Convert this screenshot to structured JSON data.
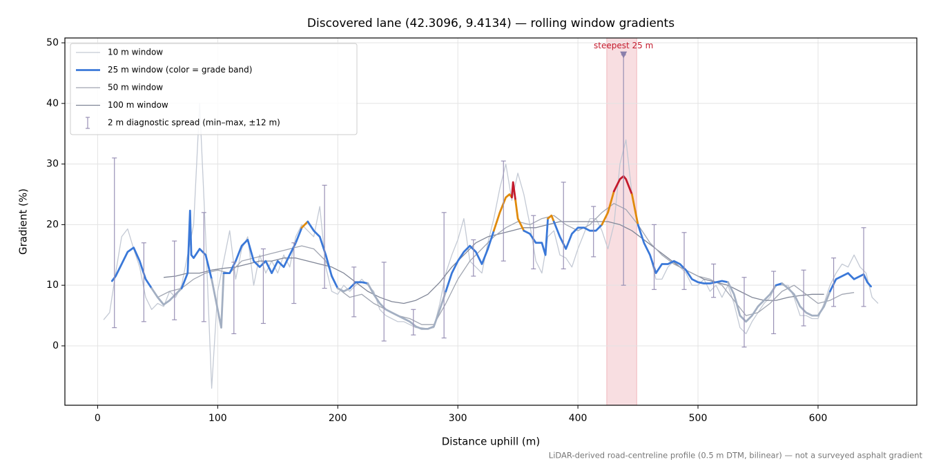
{
  "chart_data": {
    "type": "line",
    "title": "Discovered lane (42.3096, 9.4134) — rolling window gradients",
    "xlabel": "Distance uphill (m)",
    "ylabel": "Gradient (%)",
    "note": "LiDAR-derived road-centreline profile (0.5 m DTM, bilinear) — not a surveyed asphalt gradient",
    "xlim": [
      -27.25,
      682.25
    ],
    "ylim": [
      -9.8,
      50.8
    ],
    "xticks": [
      0,
      100,
      200,
      300,
      400,
      500,
      600
    ],
    "yticks": [
      0,
      10,
      20,
      30,
      40,
      50
    ],
    "grid": true,
    "legend": "upper left",
    "series": [
      {
        "name": "10 m window",
        "color": "#c3c9d4",
        "x": [
          5,
          10,
          15,
          20,
          25,
          30,
          35,
          40,
          45,
          50,
          55,
          60,
          65,
          70,
          75,
          80,
          85,
          90,
          95,
          100,
          105,
          110,
          115,
          120,
          125,
          130,
          135,
          140,
          145,
          150,
          155,
          160,
          165,
          170,
          175,
          180,
          185,
          190,
          195,
          200,
          205,
          210,
          215,
          220,
          225,
          230,
          235,
          240,
          245,
          250,
          255,
          260,
          265,
          270,
          275,
          280,
          285,
          290,
          295,
          300,
          305,
          310,
          315,
          320,
          325,
          330,
          335,
          340,
          345,
          350,
          355,
          360,
          365,
          370,
          375,
          380,
          385,
          390,
          395,
          400,
          405,
          410,
          415,
          420,
          425,
          430,
          435,
          440,
          445,
          450,
          455,
          460,
          465,
          470,
          475,
          480,
          485,
          490,
          495,
          500,
          505,
          510,
          515,
          520,
          525,
          530,
          535,
          540,
          545,
          550,
          555,
          560,
          565,
          570,
          575,
          580,
          585,
          590,
          595,
          600,
          605,
          610,
          615,
          620,
          625,
          630,
          635,
          640,
          645,
          650
        ],
        "values": [
          4.3,
          5.5,
          12,
          18,
          19.3,
          16,
          13,
          8,
          6,
          7,
          6.5,
          9,
          8,
          10,
          15,
          20,
          40,
          18,
          -7,
          9,
          14,
          19,
          11,
          16,
          18,
          10,
          15,
          12,
          14,
          12,
          15,
          13,
          18,
          20,
          19,
          18,
          23,
          13,
          9,
          8.5,
          10,
          9,
          10,
          11,
          10,
          9,
          6,
          5,
          4.5,
          4,
          4,
          3.5,
          3,
          3,
          2.8,
          3,
          7,
          12,
          15,
          17.5,
          21,
          14,
          13,
          12,
          17,
          21,
          26,
          30,
          24,
          28.5,
          25,
          20,
          14,
          12,
          18,
          19,
          15,
          14.5,
          13,
          16,
          18.5,
          21,
          21,
          19,
          16,
          20,
          30,
          34,
          25,
          20,
          17,
          15,
          11,
          11,
          13,
          14,
          13,
          12,
          10,
          10,
          11,
          9,
          10,
          8,
          10,
          7,
          3,
          2,
          4,
          5.5,
          7,
          8,
          10,
          10,
          10,
          8,
          5,
          5,
          4.5,
          4.5,
          7,
          10,
          12,
          13.5,
          13,
          15,
          13,
          12,
          8,
          7
        ]
      },
      {
        "name": "25 m window (color = grade band)",
        "color": "#3a78d8",
        "band_thresholds": [
          10,
          20,
          25
        ],
        "band_colors": [
          "#a3afc2",
          "#3a78d8",
          "#e08a0b",
          "#c41a2c"
        ],
        "x": [
          12,
          15,
          20,
          25,
          30,
          35,
          40,
          45,
          50,
          55,
          60,
          65,
          70,
          75,
          77,
          78,
          80,
          85,
          90,
          95,
          100,
          103,
          105,
          110,
          115,
          120,
          125,
          130,
          135,
          140,
          145,
          150,
          155,
          160,
          165,
          170,
          175,
          180,
          185,
          190,
          195,
          200,
          205,
          210,
          215,
          220,
          225,
          230,
          235,
          240,
          245,
          250,
          255,
          260,
          265,
          270,
          275,
          280,
          285,
          290,
          295,
          300,
          305,
          310,
          315,
          320,
          325,
          330,
          335,
          340,
          343,
          345,
          346,
          348,
          350,
          355,
          360,
          365,
          370,
          373,
          375,
          378,
          380,
          385,
          390,
          395,
          400,
          405,
          410,
          415,
          420,
          425,
          430,
          435,
          438,
          440,
          445,
          448,
          450,
          455,
          460,
          465,
          470,
          475,
          480,
          485,
          490,
          495,
          500,
          505,
          510,
          515,
          520,
          525,
          530,
          535,
          540,
          545,
          550,
          555,
          560,
          565,
          570,
          575,
          580,
          585,
          590,
          595,
          600,
          605,
          610,
          615,
          620,
          625,
          630,
          635,
          638,
          641,
          644
        ],
        "values": [
          10.7,
          11.5,
          13.5,
          15.5,
          16.2,
          14,
          11,
          9.5,
          8,
          6.8,
          7.5,
          8.5,
          9.5,
          12,
          22.3,
          15,
          14.5,
          16,
          15,
          11,
          6,
          3,
          12,
          12,
          14,
          16.5,
          17.5,
          14,
          13,
          14,
          12,
          14,
          13,
          15,
          17,
          19.5,
          20.5,
          19,
          18,
          15,
          11.5,
          9.5,
          9,
          9.5,
          10.5,
          10.5,
          10.3,
          8.5,
          7,
          6,
          5.5,
          5,
          4.5,
          4,
          3.2,
          2.8,
          2.8,
          3.2,
          6,
          9,
          12,
          14,
          15.5,
          16.5,
          15.5,
          13.5,
          16,
          19,
          22,
          24.5,
          25,
          24.5,
          27,
          24,
          21,
          19,
          18.5,
          17,
          17,
          15,
          21,
          21.5,
          20.5,
          18,
          16,
          18.5,
          19.5,
          19.5,
          19,
          19,
          20,
          22,
          25.5,
          27.5,
          28,
          27.5,
          25,
          22,
          20,
          17,
          15,
          12,
          13.5,
          13.5,
          14,
          13.5,
          12.5,
          11,
          10.5,
          10.3,
          10.3,
          10.5,
          10.7,
          10.5,
          8.5,
          5,
          4,
          5,
          6.5,
          7.5,
          8.5,
          10,
          10.3,
          9.5,
          8.5,
          6.5,
          5.5,
          5,
          5,
          6.5,
          9,
          11,
          11.5,
          12,
          11,
          11.5,
          11.8,
          10.5,
          9.8
        ]
      },
      {
        "name": "50 m window",
        "color": "#a0a5b1",
        "x": [
          40,
          50,
          60,
          70,
          80,
          90,
          100,
          110,
          120,
          130,
          140,
          150,
          160,
          170,
          180,
          190,
          200,
          210,
          220,
          230,
          240,
          250,
          260,
          270,
          280,
          290,
          300,
          310,
          320,
          330,
          340,
          350,
          360,
          370,
          380,
          390,
          400,
          410,
          420,
          430,
          440,
          450,
          460,
          470,
          480,
          490,
          500,
          510,
          520,
          530,
          540,
          550,
          560,
          570,
          580,
          590,
          600,
          610,
          620,
          630
        ],
        "values": [
          11,
          8,
          9,
          9.5,
          11,
          12,
          12.5,
          12,
          14,
          14.5,
          15,
          15.5,
          16,
          16.5,
          16,
          14,
          9.5,
          8,
          8.5,
          7,
          6,
          5,
          4.5,
          3.5,
          3.5,
          7,
          11,
          14,
          16,
          18,
          19.5,
          20.5,
          20,
          21,
          21.5,
          20,
          19,
          20,
          22,
          23.5,
          22.5,
          20,
          17,
          15,
          13.5,
          12.5,
          11.5,
          11,
          10,
          7.5,
          5,
          5.5,
          7,
          9,
          10,
          8.5,
          7,
          7.5,
          8.5,
          8.8
        ]
      },
      {
        "name": "100 m window",
        "color": "#7f8596",
        "x": [
          55,
          65,
          75,
          85,
          95,
          105,
          115,
          125,
          135,
          145,
          155,
          165,
          175,
          185,
          195,
          205,
          215,
          225,
          235,
          245,
          255,
          265,
          275,
          285,
          295,
          305,
          315,
          325,
          335,
          345,
          355,
          365,
          375,
          385,
          395,
          405,
          415,
          425,
          435,
          445,
          455,
          465,
          475,
          485,
          495,
          505,
          515,
          525,
          535,
          545,
          555,
          565,
          575,
          585,
          595,
          605
        ],
        "values": [
          11.3,
          11.5,
          12,
          12,
          12.5,
          12.8,
          13,
          13.5,
          14,
          14,
          14.5,
          14.5,
          14,
          13.5,
          13,
          12,
          10.5,
          9,
          8,
          7.3,
          7,
          7.5,
          8.5,
          10.5,
          13,
          15,
          17,
          18,
          18.5,
          19,
          19.5,
          19.5,
          20,
          20.5,
          20.5,
          20.5,
          20.5,
          20.5,
          20,
          19,
          17.5,
          16,
          14.5,
          13,
          12,
          11,
          10.5,
          10,
          9,
          8,
          7.5,
          7.5,
          8,
          8.3,
          8.5,
          8.5
        ]
      }
    ],
    "errorbars": {
      "name": "2 m diagnostic spread (min–max, ±12 m)",
      "color": "#9890b5",
      "x": [
        14,
        38.5,
        64,
        88.5,
        113.5,
        138,
        163.5,
        189,
        213.5,
        238.5,
        263,
        288.5,
        313,
        338,
        363,
        388,
        413,
        438,
        463.5,
        488.5,
        513,
        538.5,
        563,
        588,
        613,
        638
      ],
      "lo": [
        3,
        4,
        4.3,
        4,
        2,
        3.7,
        7,
        9.5,
        4.8,
        0.8,
        1.8,
        1.3,
        11.5,
        14,
        12.7,
        12.7,
        14.7,
        10,
        9.3,
        9.3,
        8,
        -0.2,
        2,
        3.3,
        6.5,
        6.5
      ],
      "hi": [
        31,
        17,
        17.3,
        22,
        13.8,
        16,
        17,
        26.5,
        13,
        13.8,
        6,
        22,
        17.5,
        30.5,
        21.5,
        27,
        23,
        48,
        20,
        18.7,
        13.5,
        11.3,
        12.3,
        12.5,
        14.5,
        19.5
      ]
    },
    "highlight": {
      "label": "steepest 25 m",
      "xlim": [
        424,
        449
      ],
      "color": "#e06b78",
      "label_color": "#c41a2c",
      "marker_x": 438,
      "marker_y": 48,
      "marker_color": "#8a7fab"
    }
  }
}
